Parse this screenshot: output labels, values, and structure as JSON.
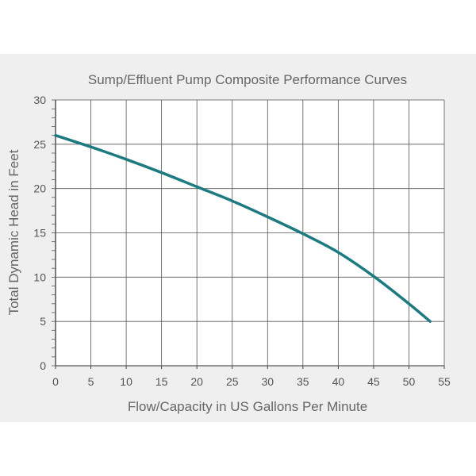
{
  "chart_data": {
    "type": "line",
    "title": "Sump/Effluent Pump Composite Performance Curves",
    "xlabel": "Flow/Capacity in US Gallons Per Minute",
    "ylabel": "Total Dynamic Head in Feet",
    "xlim": [
      0,
      55
    ],
    "ylim": [
      0,
      30
    ],
    "xticks": [
      0,
      5,
      10,
      15,
      20,
      25,
      30,
      35,
      40,
      45,
      50,
      55
    ],
    "yticks": [
      0,
      5,
      10,
      15,
      20,
      25,
      30
    ],
    "grid": true,
    "series": [
      {
        "color": "#1d7a80",
        "x": [
          0,
          5,
          10,
          15,
          20,
          25,
          30,
          35,
          40,
          45,
          50,
          53
        ],
        "y": [
          26,
          24.7,
          23.3,
          21.8,
          20.2,
          18.6,
          16.8,
          14.9,
          12.8,
          10.1,
          7.0,
          5.0
        ]
      }
    ]
  }
}
